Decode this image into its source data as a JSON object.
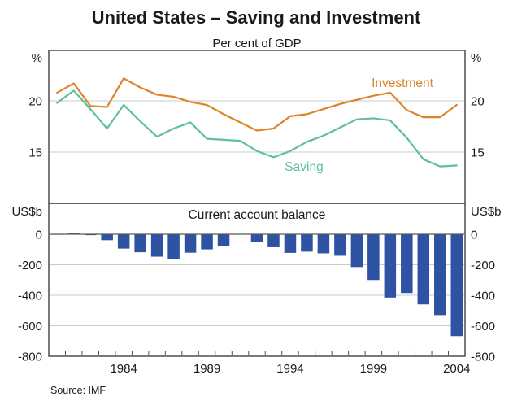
{
  "title": "United States – Saving and Investment",
  "subtitle": "Per cent of GDP",
  "source": "Source: IMF",
  "colors": {
    "investment": "#DE8327",
    "saving": "#5FBF9A",
    "bars": "#2D53A2",
    "grid": "#CBCBCB",
    "axis": "#4D4D4D",
    "zero_line": "#5A5A5A",
    "text": "#1A1A1A"
  },
  "top_panel": {
    "unit_label_left": "%",
    "unit_label_right": "%",
    "series_labels": {
      "investment": "Investment",
      "saving": "Saving"
    },
    "ytick_labels": [
      "20",
      "15"
    ],
    "ytick_values": [
      20,
      15
    ],
    "ylim": [
      10,
      25
    ]
  },
  "bottom_panel": {
    "title": "Current account balance",
    "unit_label_left": "US$b",
    "unit_label_right": "US$b",
    "ytick_labels": [
      "0",
      "-200",
      "-400",
      "-600",
      "-800"
    ],
    "ytick_values": [
      0,
      -200,
      -400,
      -600,
      -800
    ],
    "gridline_values": [
      -200,
      -400,
      -600
    ],
    "ylim": [
      -800,
      200
    ]
  },
  "x_axis": {
    "tick_labels": [
      "1984",
      "1989",
      "1994",
      "1999",
      "2004"
    ],
    "label_years": [
      1984,
      1989,
      1994,
      1999,
      2004
    ]
  },
  "chart_data": [
    {
      "type": "line",
      "title": "Per cent of GDP",
      "ylabel": "%",
      "ylim": [
        10,
        25
      ],
      "yticks": [
        15,
        20
      ],
      "grid": true,
      "legend_position": "inline-labels",
      "x": [
        1980,
        1981,
        1982,
        1983,
        1984,
        1985,
        1986,
        1987,
        1988,
        1989,
        1990,
        1991,
        1992,
        1993,
        1994,
        1995,
        1996,
        1997,
        1998,
        1999,
        2000,
        2001,
        2002,
        2003,
        2004
      ],
      "series": [
        {
          "name": "Investment",
          "values": [
            20.8,
            21.7,
            19.5,
            19.4,
            22.2,
            21.3,
            20.6,
            20.4,
            19.9,
            19.6,
            18.7,
            17.9,
            17.1,
            17.3,
            18.5,
            18.7,
            19.2,
            19.7,
            20.1,
            20.5,
            20.8,
            19.1,
            18.4,
            18.4,
            19.6
          ]
        },
        {
          "name": "Saving",
          "values": [
            19.8,
            21.0,
            19.2,
            17.3,
            19.6,
            18.0,
            16.5,
            17.3,
            17.9,
            16.3,
            16.2,
            16.1,
            15.1,
            14.5,
            15.1,
            16.0,
            16.6,
            17.4,
            18.2,
            18.3,
            18.1,
            16.4,
            14.3,
            13.6,
            13.7
          ]
        }
      ]
    },
    {
      "type": "bar",
      "title": "Current account balance",
      "ylabel": "US$b",
      "ylim": [
        -800,
        200
      ],
      "yticks": [
        0,
        -200,
        -400,
        -600,
        -800
      ],
      "grid": true,
      "categories": [
        1980,
        1981,
        1982,
        1983,
        1984,
        1985,
        1986,
        1987,
        1988,
        1989,
        1990,
        1991,
        1992,
        1993,
        1994,
        1995,
        1996,
        1997,
        1998,
        1999,
        2000,
        2001,
        2002,
        2003,
        2004
      ],
      "values": [
        2,
        5,
        -6,
        -39,
        -94,
        -118,
        -147,
        -161,
        -121,
        -99,
        -79,
        3,
        -50,
        -85,
        -122,
        -114,
        -125,
        -141,
        -215,
        -300,
        -415,
        -385,
        -460,
        -530,
        -668
      ]
    }
  ]
}
